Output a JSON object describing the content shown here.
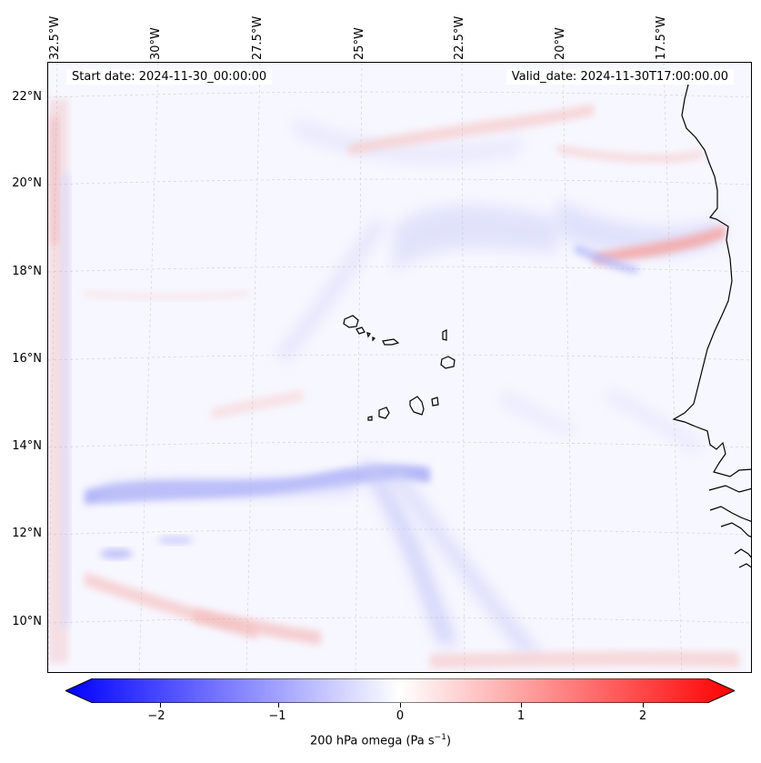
{
  "header": {
    "start_date": "Start date: 2024-11-30_00:00:00",
    "valid_date": "Valid_date: 2024-11-30T17:00:00.00"
  },
  "longitude_labels": [
    "32.5°W",
    "30°W",
    "27.5°W",
    "25°W",
    "22.5°W",
    "20°W",
    "17.5°W"
  ],
  "latitude_labels": [
    "22°N",
    "20°N",
    "18°N",
    "16°N",
    "14°N",
    "12°N",
    "10°N"
  ],
  "colorbar": {
    "ticks": [
      "−2",
      "−1",
      "0",
      "1",
      "2"
    ],
    "tick_values": [
      -2,
      -1,
      0,
      1,
      2
    ],
    "range": [
      -2.5,
      2.5
    ],
    "label_prefix": "200 hPa omega (Pa s",
    "label_exp": "−1",
    "label_suffix": ")",
    "colors": {
      "min": "#0000ff",
      "mid": "#ffffff",
      "max": "#ff0000"
    }
  },
  "features": {
    "island_group": "Cape Verde islands",
    "coastline": "West African coast"
  }
}
